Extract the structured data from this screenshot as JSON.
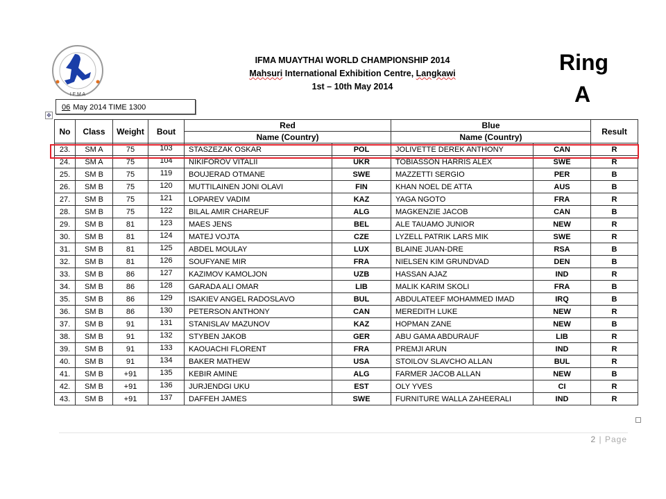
{
  "header": {
    "logo_text": "INTERNATIONAL FEDERATION OF MUAYTHAI AMATEUR · IFMA",
    "title": "IFMA MUAYTHAI WORLD CHAMPIONSHIP 2014",
    "venue_part1": "Mahsuri",
    "venue_part2": " International Exhibition Centre, ",
    "venue_part3": "Langkawi",
    "dates": "1st – 10th May 2014",
    "ring_label": "Ring",
    "ring_letter": "A",
    "date_day": "06",
    "date_rest": "May 2014 TIME 1300"
  },
  "table": {
    "headers": {
      "no": "No",
      "class": "Class",
      "weight": "Weight",
      "bout": "Bout",
      "red": "Red",
      "blue": "Blue",
      "name_country": "Name (Country)",
      "result": "Result"
    },
    "rows": [
      [
        "23.",
        "SM A",
        "75",
        "103",
        "STASZEZAK OSKAR",
        "POL",
        "JOLIVETTE DEREK ANTHONY",
        "CAN",
        "R"
      ],
      [
        "24.",
        "SM A",
        "75",
        "104",
        "NIKIFOROV VITALII",
        "UKR",
        "TOBIASSON HARRIS ALEX",
        "SWE",
        "R"
      ],
      [
        "25.",
        "SM B",
        "75",
        "119",
        "BOUJERAD OTMANE",
        "SWE",
        "MAZZETTI SERGIO",
        "PER",
        "B"
      ],
      [
        "26.",
        "SM B",
        "75",
        "120",
        "MUTTILAINEN JONI OLAVI",
        "FIN",
        "KHAN NOEL DE ATTA",
        "AUS",
        "B"
      ],
      [
        "27.",
        "SM B",
        "75",
        "121",
        "LOPAREV VADIM",
        "KAZ",
        "YAGA NGOTO",
        "FRA",
        "R"
      ],
      [
        "28.",
        "SM B",
        "75",
        "122",
        "BILAL AMIR CHAREUF",
        "ALG",
        "MAGKENZIE JACOB",
        "CAN",
        "B"
      ],
      [
        "29.",
        "SM B",
        "81",
        "123",
        "MAES JENS",
        "BEL",
        "ALE TAUAMO JUNIOR",
        "NEW",
        "R"
      ],
      [
        "30.",
        "SM B",
        "81",
        "124",
        "MATEJ VOJTA",
        "CZE",
        "LYZELL PATRIK LARS MIK",
        "SWE",
        "R"
      ],
      [
        "31.",
        "SM B",
        "81",
        "125",
        "ABDEL MOULAY",
        "LUX",
        "BLAINE JUAN-DRE",
        "RSA",
        "B"
      ],
      [
        "32.",
        "SM B",
        "81",
        "126",
        "SOUFYANE MIR",
        "FRA",
        "NIELSEN KIM GRUNDVAD",
        "DEN",
        "B"
      ],
      [
        "33.",
        "SM B",
        "86",
        "127",
        "KAZIMOV KAMOLJON",
        "UZB",
        "HASSAN AJAZ",
        "IND",
        "R"
      ],
      [
        "34.",
        "SM B",
        "86",
        "128",
        "GARADA ALI OMAR",
        "LIB",
        "MALIK KARIM SKOLI",
        "FRA",
        "B"
      ],
      [
        "35.",
        "SM B",
        "86",
        "129",
        "ISAKIEV ANGEL RADOSLAVO",
        "BUL",
        "ABDULATEEF MOHAMMED IMAD",
        "IRQ",
        "B"
      ],
      [
        "36.",
        "SM B",
        "86",
        "130",
        "PETERSON ANTHONY",
        "CAN",
        "MEREDITH LUKE",
        "NEW",
        "R"
      ],
      [
        "37.",
        "SM B",
        "91",
        "131",
        "STANISLAV MAZUNOV",
        "KAZ",
        "HOPMAN ZANE",
        "NEW",
        "B"
      ],
      [
        "38.",
        "SM B",
        "91",
        "132",
        "STYBEN JAKOB",
        "GER",
        "ABU GAMA ABDURAUF",
        "LIB",
        "R"
      ],
      [
        "39.",
        "SM B",
        "91",
        "133",
        "KAOUACHI FLORENT",
        "FRA",
        "PREMJI ARUN",
        "IND",
        "R"
      ],
      [
        "40.",
        "SM B",
        "91",
        "134",
        "BAKER MATHEW",
        "USA",
        "STOILOV SLAVCHO ALLAN",
        "BUL",
        "R"
      ],
      [
        "41.",
        "SM B",
        "+91",
        "135",
        "KEBIR AMINE",
        "ALG",
        "FARMER JACOB ALLAN",
        "NEW",
        "B"
      ],
      [
        "42.",
        "SM B",
        "+91",
        "136",
        "JURJENDGI UKU",
        "EST",
        "OLY YVES",
        "CI",
        "R"
      ],
      [
        "43.",
        "SM B",
        "+91",
        "137",
        "DAFFEH JAMES",
        "SWE",
        "FURNITURE WALLA ZAHEERALI",
        "IND",
        "R"
      ]
    ],
    "highlight_color": "#e0202a"
  },
  "footer": {
    "page_number": "2",
    "page_label": " | Page"
  }
}
